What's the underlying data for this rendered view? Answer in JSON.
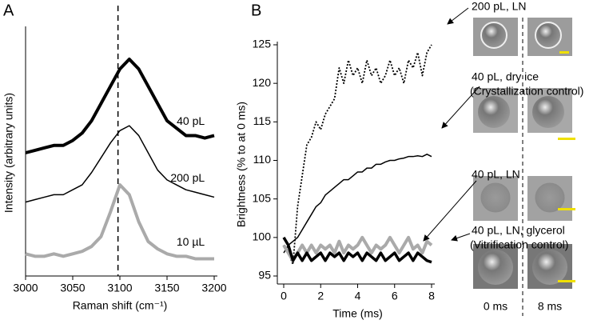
{
  "panel_labels": [
    "A",
    "B"
  ],
  "image_labels": [
    "0 ms",
    "8 ms"
  ],
  "chart_data": [
    {
      "type": "line",
      "x_label": "Raman shift (cm⁻¹)",
      "y_label": "Intensity (arbitrary units)",
      "xlim": [
        3000,
        3200
      ],
      "xticks": [
        3000,
        3050,
        3100,
        3150,
        3200
      ],
      "ylim": [
        0,
        1
      ],
      "vline": 3098,
      "x": [
        3000,
        3010,
        3020,
        3030,
        3040,
        3050,
        3060,
        3070,
        3080,
        3090,
        3100,
        3110,
        3120,
        3130,
        3140,
        3150,
        3160,
        3170,
        3180,
        3190,
        3200
      ],
      "series": [
        {
          "name": "40 pL",
          "color": "#000000",
          "width": 4,
          "style": "solid",
          "values": [
            0.5,
            0.51,
            0.52,
            0.53,
            0.53,
            0.55,
            0.58,
            0.63,
            0.7,
            0.77,
            0.84,
            0.88,
            0.84,
            0.77,
            0.7,
            0.63,
            0.6,
            0.57,
            0.57,
            0.56,
            0.57
          ]
        },
        {
          "name": "200 pL",
          "color": "#000000",
          "width": 1.5,
          "style": "solid",
          "values": [
            0.3,
            0.31,
            0.32,
            0.33,
            0.33,
            0.35,
            0.37,
            0.42,
            0.48,
            0.54,
            0.59,
            0.61,
            0.57,
            0.5,
            0.43,
            0.39,
            0.37,
            0.35,
            0.34,
            0.33,
            0.32
          ]
        },
        {
          "name": "10 µL",
          "color": "#aaaaaa",
          "width": 4,
          "style": "solid",
          "values": [
            0.09,
            0.08,
            0.08,
            0.09,
            0.08,
            0.09,
            0.1,
            0.12,
            0.16,
            0.26,
            0.37,
            0.33,
            0.22,
            0.14,
            0.11,
            0.09,
            0.08,
            0.08,
            0.07,
            0.07,
            0.07
          ]
        }
      ]
    },
    {
      "type": "line",
      "x_label": "Time (ms)",
      "y_label": "Brightness (% to at 0 ms)",
      "xlim": [
        0,
        8
      ],
      "xticks": [
        0,
        2,
        4,
        6,
        8
      ],
      "ylim": [
        95,
        125
      ],
      "yticks": [
        95,
        100,
        105,
        110,
        115,
        120,
        125
      ],
      "x": [
        0,
        0.25,
        0.5,
        0.75,
        1,
        1.25,
        1.5,
        1.75,
        2,
        2.25,
        2.5,
        2.75,
        3,
        3.25,
        3.5,
        3.75,
        4,
        4.25,
        4.5,
        4.75,
        5,
        5.25,
        5.5,
        5.75,
        6,
        6.25,
        6.5,
        6.75,
        7,
        7.25,
        7.5,
        7.75,
        8
      ],
      "series": [
        {
          "name": "200 pL, LN",
          "color": "#000000",
          "width": 1.8,
          "style": "dotted",
          "values": [
            99,
            98,
            96.5,
            104,
            108,
            112,
            113,
            115,
            114,
            116,
            117,
            118,
            122,
            120,
            123,
            121,
            122,
            120,
            123,
            121,
            122,
            120,
            121,
            123,
            121,
            122,
            120,
            123,
            122,
            124,
            121,
            124,
            125
          ]
        },
        {
          "name": "40 pL, dry ice",
          "note": "(Crystallization control)",
          "color": "#000000",
          "width": 1.5,
          "style": "solid",
          "values": [
            98,
            99,
            99.5,
            100,
            101,
            102,
            103,
            104,
            104.5,
            105.5,
            106,
            106.5,
            107,
            107.5,
            107.5,
            108,
            108.5,
            108.5,
            109,
            109,
            109.5,
            109.5,
            109.8,
            110,
            110,
            110.2,
            110.3,
            110.5,
            110.5,
            110.6,
            110.5,
            110.8,
            110.5
          ]
        },
        {
          "name": "40 pL, LN, glycerol",
          "note": "(Vitrification control)",
          "color": "#aaaaaa",
          "width": 4,
          "style": "solid",
          "values": [
            99,
            98,
            97,
            98,
            99,
            98,
            99,
            98,
            99,
            98.5,
            99,
            98,
            99.5,
            98,
            99,
            98.5,
            99,
            100,
            99,
            98,
            99,
            98.5,
            99,
            100,
            99,
            98,
            99,
            100,
            98.5,
            99,
            98,
            99.5,
            99
          ]
        },
        {
          "name": "40 pL, LN",
          "color": "#000000",
          "width": 3.5,
          "style": "solid",
          "values": [
            100,
            99,
            97,
            98,
            97,
            98,
            97,
            97.5,
            98,
            97,
            98,
            97.5,
            98,
            97,
            98,
            97.5,
            98,
            97,
            98,
            97.5,
            97,
            98,
            97,
            97.5,
            98,
            97,
            97.5,
            98,
            97,
            98,
            97.5,
            97,
            96.8
          ]
        }
      ]
    }
  ]
}
